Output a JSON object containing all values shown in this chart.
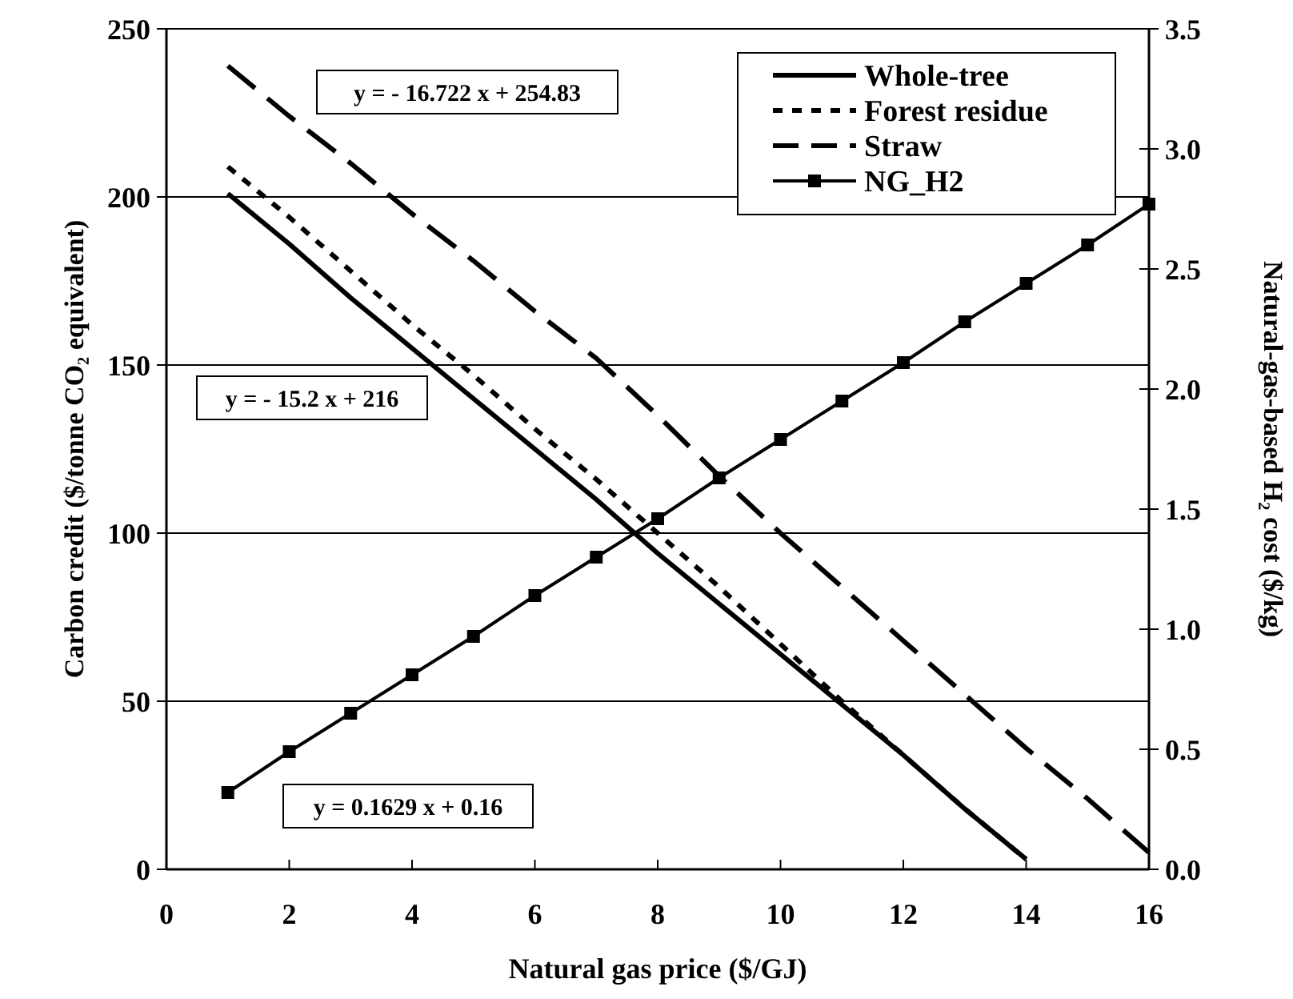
{
  "chart_data": {
    "type": "line",
    "xlabel": "Natural gas price ($/GJ)",
    "ylabel": "Carbon credit ($/tonne CO₂ equivalent)",
    "y2label": "Natural-gas-based H₂ cost ($/kg)",
    "x": [
      1,
      2,
      3,
      4,
      5,
      6,
      7,
      8,
      9,
      10,
      11,
      12,
      13,
      14,
      15,
      16
    ],
    "series": [
      {
        "name": "Whole-tree",
        "color": "#000000",
        "line_style": "solid",
        "marker": "none",
        "values": [
          201,
          186,
          170,
          155,
          140,
          125,
          110,
          94,
          79,
          64,
          49,
          34,
          18,
          3,
          null,
          null
        ]
      },
      {
        "name": "Forest residue",
        "color": "#000000",
        "line_style": "dotted",
        "marker": "none",
        "values": [
          209,
          194,
          178,
          162,
          147,
          131,
          116,
          100,
          84,
          67,
          50,
          34,
          18,
          3,
          null,
          null
        ]
      },
      {
        "name": "Straw",
        "color": "#000000",
        "line_style": "dashed",
        "marker": "none",
        "values": [
          239,
          224,
          210,
          195,
          181,
          166,
          152,
          135,
          117,
          100,
          84,
          68,
          52,
          36,
          21,
          5
        ]
      },
      {
        "name": "NG_H2",
        "color": "#000000",
        "line_style": "solid",
        "marker": "square",
        "axis": "y2",
        "values": [
          0.32,
          0.49,
          0.65,
          0.81,
          0.97,
          1.14,
          1.3,
          1.46,
          1.63,
          1.79,
          1.95,
          2.11,
          2.28,
          2.44,
          2.6,
          2.77
        ]
      }
    ],
    "xlim": [
      0,
      16
    ],
    "xticks": [
      0,
      2,
      4,
      6,
      8,
      10,
      12,
      14,
      16
    ],
    "ylim": [
      0,
      250
    ],
    "yticks": [
      0,
      50,
      100,
      150,
      200,
      250
    ],
    "y2lim": [
      0,
      3.5
    ],
    "y2ticks": [
      {
        "value": 0,
        "label": "0.0"
      },
      0.5,
      {
        "value": 1,
        "label": "1.0"
      },
      1.5,
      {
        "value": 2,
        "label": "2.0"
      },
      2.5,
      {
        "value": 3,
        "label": "3.0"
      },
      3.5
    ],
    "grid": "y",
    "legend": "top right",
    "annotations": [
      "y = - 16.722 x + 254.83",
      "y = - 15.2 x + 216",
      "y = 0.1629 x + 0.16"
    ]
  }
}
